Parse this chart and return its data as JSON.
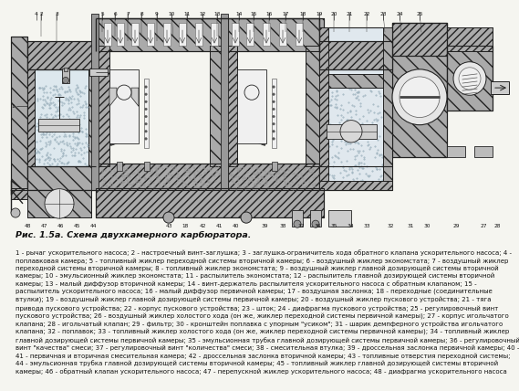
{
  "title": "Рис. 1.5а. Схема двухкамерного карбюратора.",
  "caption_text": "1 - рычаг ускорительного насоса; 2 - настроечный винт-заглушка; 3 - заглушка-ограничитель хода обратного клапана ускорительного насоса; 4 - поплавковая камера; 5 - топливный жиклер переходной системы вторичной камеры; 6 - воздушный жиклер экономстата; 7 - воздушный жиклер переходной системы вторичной камеры; 8 - топливный жиклер экономстата; 9 - воздушный жиклер главной дозирующей системы вторичной камеры; 10 - эмульсионный жиклер экономстата; 11 - распылитель экономстата; 12 - распылитель главной дозирующей системы вторичной камеры; 13 - малый диффузор вторичной камеры; 14 - винт-держатель распылителя ускорительного насоса с обратным клапаном; 15 - распылитель ускорительного насоса; 16 - малый диффузор первичной камеры; 17 - воздушная заслонка; 18 - переходные (соединительные втулки); 19 - воздушный жиклер главной дозирующей системы первичной камеры; 20 - воздушный жиклер пускового устройства; 21 - тяга привода пускового устройства; 22 - корпус пускового устройства; 23 - шток; 24 - диафрагма пускового устройства; 25 - регулировочный винт пускового устройства; 26 - воздушный жиклер холостого хода (он же, жиклер переходной системы первичной камеры); 27 - корпус игольчатого клапана; 28 - игольчатый клапан; 29 - фильтр; 30 - кронштейн поплавка с упорным \"усиком\"; 31 - шарик демпферного устройства игольчатого клапана; 32 - поплавок; 33 - топливный жиклер холостого хода (он же, жиклер переходной системы первичной камеры); 34 - топливный жиклер главной дозирующей системы первичной камеры; 35 - эмульсионная трубка главной дозирующей системы первичной камеры; 36 - регулировочный винт \"качества\" смеси; 37 - регулировочный винт \"количества\" смеси; 38 - смесительная втулка; 39 - дроссельная заслонка первичной камеры; 40 - 41 - первичная и вторичная смесительная камера; 42 - дроссельная заслонка вторичной камеры; 43 - топливные отверстия переходной системы; 44 - эмульсионная трубка главной дозирующей системы вторичной камеры; 45 - топливный жиклер главной дозирующей системы вторичной камеры; 46 - обратный клапан ускорительного насоса; 47 - перепускной жиклер ускорительного насоса; 48 - диафрагма ускорительного насоса",
  "bg_color": "#f5f5f0",
  "hatch_color": "#888888",
  "line_color": "#111111",
  "title_fontsize": 6.8,
  "caption_fontsize": 5.0,
  "text_color": "#111111"
}
